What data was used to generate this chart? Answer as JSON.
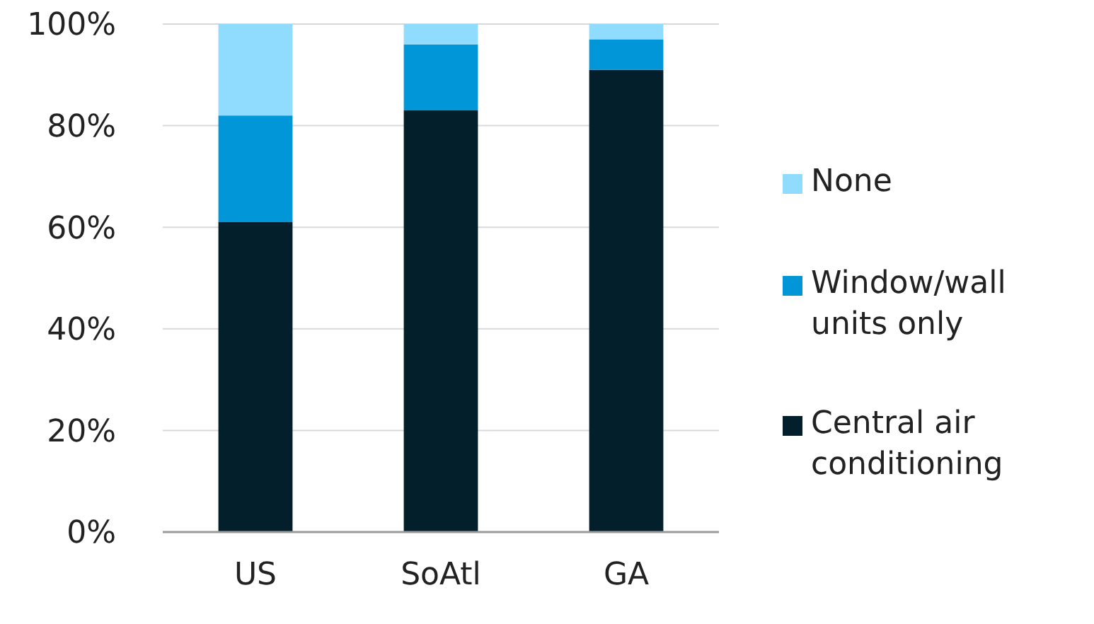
{
  "chart_data": {
    "type": "bar",
    "stacked": true,
    "categories": [
      "US",
      "SoAtl",
      "GA"
    ],
    "series": [
      {
        "name": "Central air conditioning",
        "color": "#041f2c",
        "values": [
          61,
          83,
          91
        ]
      },
      {
        "name": "Window/wall units only",
        "color": "#0096d8",
        "values": [
          21,
          13,
          6
        ]
      },
      {
        "name": "None",
        "color": "#8fdcff",
        "values": [
          18,
          4,
          3
        ]
      }
    ],
    "ylim": [
      0,
      100
    ],
    "yticks": [
      {
        "value": 0,
        "label": "0%"
      },
      {
        "value": 20,
        "label": "20%"
      },
      {
        "value": 40,
        "label": "40%"
      },
      {
        "value": 60,
        "label": "60%"
      },
      {
        "value": 80,
        "label": "80%"
      },
      {
        "value": 100,
        "label": "100%"
      }
    ],
    "grid": "y",
    "legend": "right"
  }
}
